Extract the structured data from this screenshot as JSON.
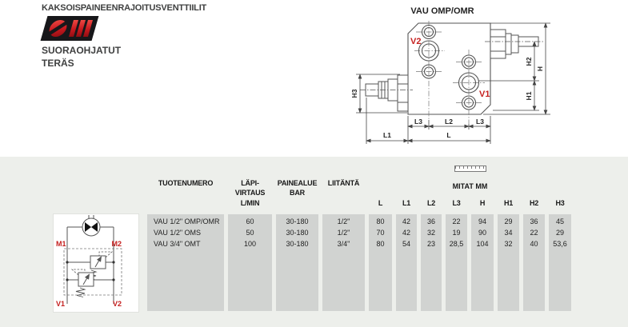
{
  "header": {
    "title": "KAKSOISPAINEENRAJOITUSVENTTIILIT",
    "subtitle1": "SUORAOHJATUT",
    "subtitle2": "TERÄS",
    "logo": "omfb-brand-mark"
  },
  "drawing": {
    "title": "VAU OMP/OMR",
    "port_v1": "V1",
    "port_v2": "V2",
    "dim_h": "H",
    "dim_h1": "H1",
    "dim_h2": "H2",
    "dim_h3": "H3",
    "dim_l": "L",
    "dim_l1": "L1",
    "dim_l2": "L2",
    "dim_l3a": "L3",
    "dim_l3b": "L3"
  },
  "schematic": {
    "m1": "M1",
    "m2": "M2",
    "v1": "V1",
    "v2": "V2"
  },
  "table": {
    "group_header": "MITAT MM",
    "columns": [
      {
        "id": "tuotenumero",
        "lines": [
          "TUOTENUMERO"
        ],
        "row": 1
      },
      {
        "id": "lapivirtaus",
        "lines": [
          "LÄPI-",
          "VIRTAUS",
          "L/MIN"
        ],
        "row": 1
      },
      {
        "id": "painealue",
        "lines": [
          "PAINEALUE",
          "BAR"
        ],
        "row": 1
      },
      {
        "id": "liitanta",
        "lines": [
          "LIITÄNTÄ"
        ],
        "row": 1
      },
      {
        "id": "l",
        "lines": [
          "L"
        ],
        "row": 3
      },
      {
        "id": "l1",
        "lines": [
          "L1"
        ],
        "row": 3
      },
      {
        "id": "l2",
        "lines": [
          "L2"
        ],
        "row": 3
      },
      {
        "id": "l3",
        "lines": [
          "L3"
        ],
        "row": 3
      },
      {
        "id": "h",
        "lines": [
          "H"
        ],
        "row": 3
      },
      {
        "id": "h1",
        "lines": [
          "H1"
        ],
        "row": 3
      },
      {
        "id": "h2",
        "lines": [
          "H2"
        ],
        "row": 3
      },
      {
        "id": "h3",
        "lines": [
          "H3"
        ],
        "row": 3
      }
    ],
    "rows": [
      [
        "VAU 1/2\" OMP/OMR",
        "60",
        "30-180",
        "1/2\"",
        "80",
        "42",
        "36",
        "22",
        "94",
        "29",
        "36",
        "45"
      ],
      [
        "VAU 1/2\" OMS",
        "50",
        "30-180",
        "1/2\"",
        "70",
        "42",
        "32",
        "19",
        "90",
        "34",
        "22",
        "29"
      ],
      [
        "VAU 3/4\" OMT",
        "100",
        "30-180",
        "3/4\"",
        "80",
        "54",
        "23",
        "28,5",
        "104",
        "32",
        "40",
        "53,6"
      ]
    ]
  },
  "colors": {
    "accent_red": "#c5201f",
    "cell_gray": "#d1d3d1",
    "section_bg": "#edefeb",
    "line_color": "#555555"
  }
}
